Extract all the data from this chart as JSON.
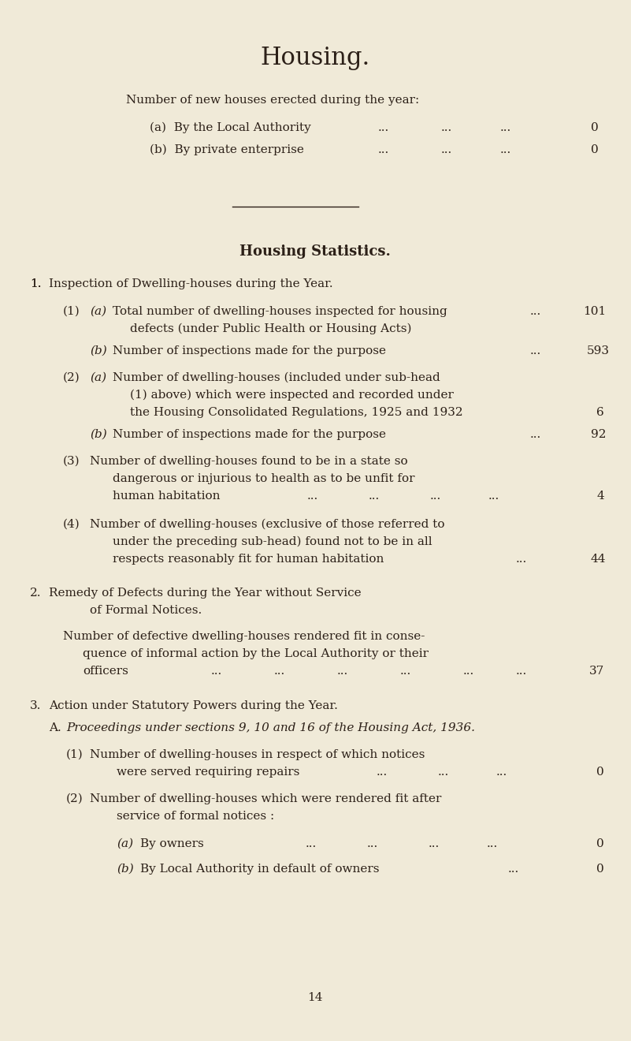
{
  "bg_color": "#f0ead8",
  "text_color": "#2c2018",
  "title": "Housing.",
  "subtitle": "Number of new houses erected during the year:",
  "page_number": "14",
  "figw": 8.01,
  "figh": 13.2,
  "dpi": 100
}
